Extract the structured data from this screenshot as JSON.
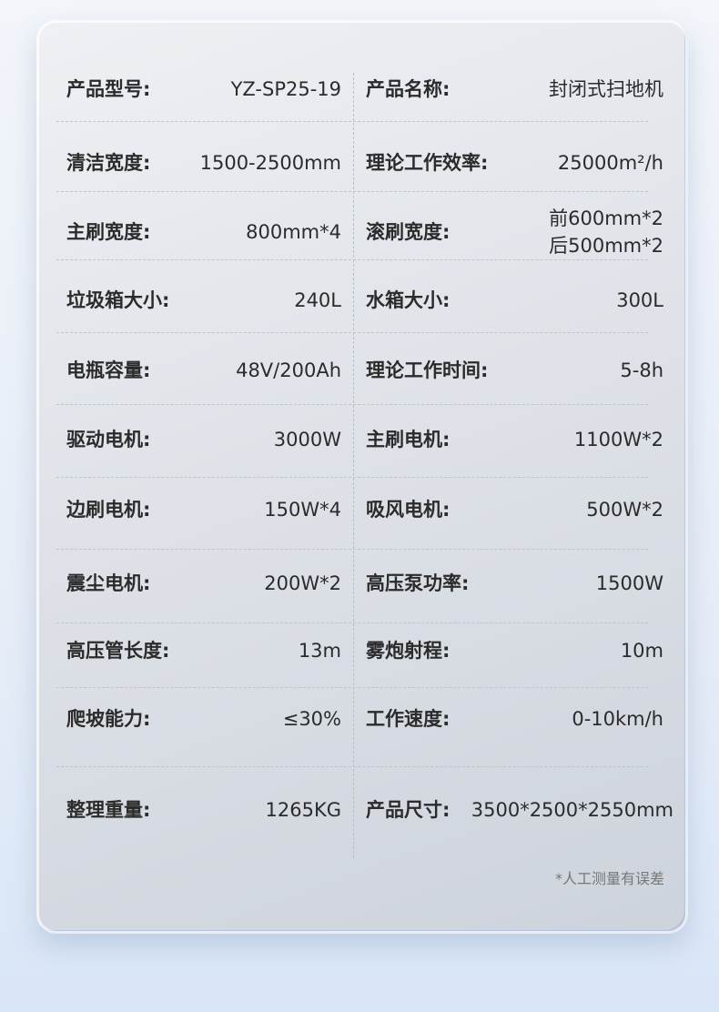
{
  "specs": [
    {
      "left_label": "产品型号:",
      "left_value": "YZ-SP25-19",
      "right_label": "产品名称:",
      "right_value": "封闭式扫地机"
    },
    {
      "left_label": "清洁宽度:",
      "left_value": "1500-2500mm",
      "right_label": "理论工作效率:",
      "right_value": "25000m²/h"
    },
    {
      "left_label": "主刷宽度:",
      "left_value": "800mm*4",
      "right_label": "滚刷宽度:",
      "right_value": "前600mm*2\n后500mm*2"
    },
    {
      "left_label": "垃圾箱大小:",
      "left_value": "240L",
      "right_label": "水箱大小:",
      "right_value": "300L"
    },
    {
      "left_label": "电瓶容量:",
      "left_value": "48V/200Ah",
      "right_label": "理论工作时间:",
      "right_value": "5-8h"
    },
    {
      "left_label": "驱动电机:",
      "left_value": "3000W",
      "right_label": "主刷电机:",
      "right_value": "1100W*2"
    },
    {
      "left_label": "边刷电机:",
      "left_value": "150W*4",
      "right_label": "吸风电机:",
      "right_value": "500W*2"
    },
    {
      "left_label": "震尘电机:",
      "left_value": "200W*2",
      "right_label": "高压泵功率:",
      "right_value": "1500W"
    },
    {
      "left_label": "高压管长度:",
      "left_value": "13m",
      "right_label": "雾炮射程:",
      "right_value": "10m"
    },
    {
      "left_label": "爬坡能力:",
      "left_value": "≤30%",
      "right_label": "工作速度:",
      "right_value": "0-10km/h"
    },
    {
      "left_label": "整理重量:",
      "left_value": "1265KG",
      "right_label": "产品尺寸:",
      "right_value": "3500*2500*2550mm"
    }
  ],
  "footnote": "*人工测量有误差"
}
